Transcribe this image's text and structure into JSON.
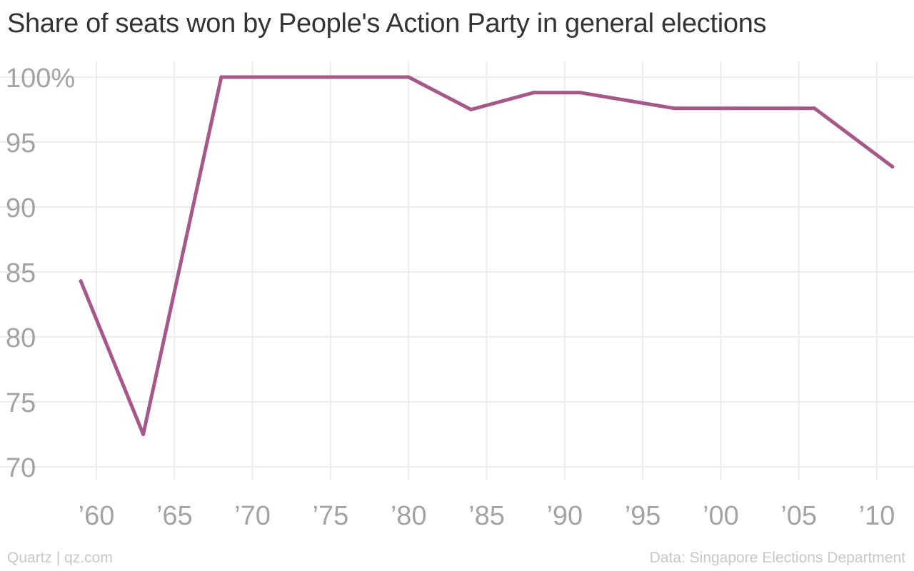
{
  "title": "Share of seats won by People's Action Party in general elections",
  "footer": {
    "credit": "Quartz | qz.com",
    "source": "Data: Singapore Elections Department"
  },
  "colors": {
    "line": "#a6588a",
    "grid": "#ececec",
    "tick_text": "#a3a3a3"
  },
  "chart_data": {
    "type": "line",
    "title": "Share of seats won by People's Action Party in general elections",
    "xlabel": "",
    "ylabel": "",
    "xlim": [
      1958,
      2012
    ],
    "ylim": [
      68,
      102
    ],
    "grid": true,
    "y_ticks": [
      {
        "value": 100,
        "label": "100%"
      },
      {
        "value": 95,
        "label": "95"
      },
      {
        "value": 90,
        "label": "90"
      },
      {
        "value": 85,
        "label": "85"
      },
      {
        "value": 80,
        "label": "80"
      },
      {
        "value": 75,
        "label": "75"
      },
      {
        "value": 70,
        "label": "70"
      }
    ],
    "x_ticks": [
      {
        "value": 1960,
        "label": "’60"
      },
      {
        "value": 1965,
        "label": "’65"
      },
      {
        "value": 1970,
        "label": "’70"
      },
      {
        "value": 1975,
        "label": "’75"
      },
      {
        "value": 1980,
        "label": "’80"
      },
      {
        "value": 1985,
        "label": "’85"
      },
      {
        "value": 1990,
        "label": "’90"
      },
      {
        "value": 1995,
        "label": "’95"
      },
      {
        "value": 2000,
        "label": "’00"
      },
      {
        "value": 2005,
        "label": "’05"
      },
      {
        "value": 2010,
        "label": "’10"
      }
    ],
    "series": [
      {
        "x": [
          1959,
          1963,
          1968,
          1972,
          1976,
          1980,
          1984,
          1988,
          1991,
          1997,
          2001,
          2006,
          2011
        ],
        "values": [
          84.3,
          72.5,
          100,
          100,
          100,
          100,
          97.5,
          98.8,
          98.8,
          97.6,
          97.6,
          97.6,
          93.1
        ]
      }
    ]
  }
}
